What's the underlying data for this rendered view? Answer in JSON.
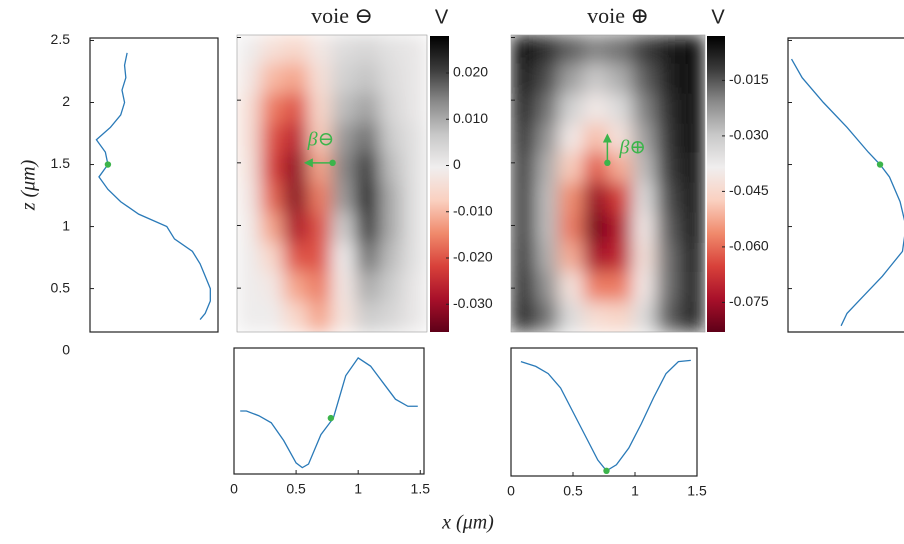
{
  "shared": {
    "xlabel": "x (μm)",
    "ylabel": "z (μm)"
  },
  "chart_data": [
    {
      "type": "vprofile",
      "ylim": [
        0.15,
        2.52
      ],
      "vlim": [
        0,
        1
      ],
      "yticks": [
        0,
        0.5,
        1,
        1.5,
        2,
        2.5
      ],
      "z": [
        2.4,
        2.3,
        2.2,
        2.1,
        2.0,
        1.9,
        1.8,
        1.7,
        1.6,
        1.5,
        1.4,
        1.3,
        1.2,
        1.1,
        1.0,
        0.9,
        0.8,
        0.7,
        0.6,
        0.5,
        0.4,
        0.3,
        0.25
      ],
      "values": [
        0.29,
        0.27,
        0.28,
        0.25,
        0.27,
        0.24,
        0.16,
        0.05,
        0.12,
        0.14,
        0.07,
        0.14,
        0.24,
        0.38,
        0.6,
        0.66,
        0.8,
        0.86,
        0.9,
        0.94,
        0.94,
        0.9,
        0.86
      ],
      "color": "#2a7ab8",
      "marker": {
        "z": 1.5,
        "value": 0.14,
        "color": "#3cb44b"
      }
    },
    {
      "type": "heatmap",
      "title": "voie ⊖",
      "annotation": "β⊖",
      "xlim": [
        0,
        1.55
      ],
      "ylim": [
        0.15,
        2.52
      ],
      "x": [
        0.1,
        0.29,
        0.48,
        0.68,
        0.87,
        1.07,
        1.26,
        1.45
      ],
      "z": [
        2.4,
        2.17,
        1.93,
        1.69,
        1.46,
        1.22,
        0.98,
        0.74,
        0.51,
        0.27
      ],
      "values": [
        [
          0,
          -0.004,
          -0.006,
          -0.002,
          0.003,
          0.004,
          0.002,
          0.001
        ],
        [
          -0.002,
          -0.01,
          -0.012,
          -0.004,
          0.005,
          0.007,
          0.003,
          0.001
        ],
        [
          -0.004,
          -0.016,
          -0.02,
          -0.006,
          0.008,
          0.011,
          0.004,
          0.001
        ],
        [
          -0.004,
          -0.02,
          -0.026,
          -0.008,
          0.012,
          0.016,
          0.006,
          0.002
        ],
        [
          -0.003,
          -0.022,
          -0.031,
          -0.012,
          0.014,
          0.021,
          0.008,
          0.002
        ],
        [
          -0.002,
          -0.018,
          -0.032,
          -0.016,
          0.012,
          0.025,
          0.01,
          0.002
        ],
        [
          -0.001,
          -0.012,
          -0.028,
          -0.02,
          0.006,
          0.022,
          0.01,
          0.002
        ],
        [
          0,
          -0.006,
          -0.02,
          -0.02,
          0.0,
          0.016,
          0.008,
          0.002
        ],
        [
          0,
          -0.002,
          -0.012,
          -0.016,
          -0.002,
          0.01,
          0.006,
          0.001
        ],
        [
          0,
          0,
          -0.006,
          -0.012,
          -0.003,
          0.006,
          0.004,
          0.001
        ]
      ],
      "clim": [
        -0.036,
        0.028
      ],
      "colormap": [
        "#5e0018",
        "#a8102a",
        "#d8413a",
        "#f08a6c",
        "#fad0c0",
        "#f0eeee",
        "#c8c8c8",
        "#8a8a8a",
        "#3a3a3a",
        "#000000"
      ],
      "colorbar_label": "V",
      "colorbar_ticks": [
        {
          "value": 0.02,
          "label": "0.020"
        },
        {
          "value": 0.01,
          "label": "0.010"
        },
        0,
        {
          "value": -0.01,
          "label": "-0.010"
        },
        {
          "value": -0.02,
          "label": "-0.020"
        },
        {
          "value": -0.03,
          "label": "-0.030"
        }
      ],
      "marker": {
        "x": 0.78,
        "z": 1.5,
        "dx": -0.22,
        "dz": 0,
        "color": "#3cb44b"
      }
    },
    {
      "type": "line",
      "xlim": [
        0,
        1.53
      ],
      "vlim": [
        0,
        1
      ],
      "xticks": [
        0,
        0.5,
        1,
        1.5
      ],
      "x": [
        0.05,
        0.1,
        0.2,
        0.3,
        0.4,
        0.5,
        0.55,
        0.6,
        0.7,
        0.8,
        0.9,
        1.0,
        1.1,
        1.2,
        1.3,
        1.4,
        1.48
      ],
      "values": [
        0.5,
        0.5,
        0.46,
        0.4,
        0.25,
        0.06,
        0.02,
        0.05,
        0.3,
        0.44,
        0.8,
        0.95,
        0.88,
        0.74,
        0.6,
        0.54,
        0.54
      ],
      "color": "#2a7ab8",
      "marker": {
        "x": 0.78,
        "value": 0.44,
        "color": "#3cb44b"
      }
    },
    {
      "type": "heatmap",
      "title": "voie ⊕",
      "annotation": "β⊕",
      "xlim": [
        0,
        1.55
      ],
      "ylim": [
        0.15,
        2.52
      ],
      "x": [
        0.1,
        0.29,
        0.48,
        0.68,
        0.87,
        1.07,
        1.26,
        1.45
      ],
      "z": [
        2.4,
        2.17,
        1.93,
        1.69,
        1.46,
        1.22,
        0.98,
        0.74,
        0.51,
        0.27
      ],
      "values": [
        [
          -0.005,
          -0.01,
          -0.016,
          -0.02,
          -0.018,
          -0.012,
          -0.007,
          -0.004
        ],
        [
          -0.006,
          -0.014,
          -0.024,
          -0.03,
          -0.026,
          -0.016,
          -0.008,
          -0.004
        ],
        [
          -0.008,
          -0.018,
          -0.032,
          -0.04,
          -0.034,
          -0.02,
          -0.01,
          -0.005
        ],
        [
          -0.01,
          -0.022,
          -0.04,
          -0.05,
          -0.042,
          -0.024,
          -0.011,
          -0.005
        ],
        [
          -0.012,
          -0.026,
          -0.048,
          -0.062,
          -0.052,
          -0.028,
          -0.012,
          -0.006
        ],
        [
          -0.012,
          -0.028,
          -0.056,
          -0.076,
          -0.066,
          -0.034,
          -0.014,
          -0.006
        ],
        [
          -0.012,
          -0.028,
          -0.058,
          -0.08,
          -0.072,
          -0.04,
          -0.016,
          -0.006
        ],
        [
          -0.011,
          -0.026,
          -0.052,
          -0.074,
          -0.07,
          -0.042,
          -0.018,
          -0.007
        ],
        [
          -0.01,
          -0.022,
          -0.042,
          -0.058,
          -0.058,
          -0.04,
          -0.018,
          -0.008
        ],
        [
          -0.009,
          -0.018,
          -0.034,
          -0.044,
          -0.046,
          -0.034,
          -0.016,
          -0.008
        ]
      ],
      "clim": [
        -0.083,
        -0.003
      ],
      "colormap": [
        "#5e0018",
        "#a8102a",
        "#d8413a",
        "#f08a6c",
        "#fad0c0",
        "#f0eeee",
        "#c8c8c8",
        "#8a8a8a",
        "#3a3a3a",
        "#000000"
      ],
      "colorbar_label": "V",
      "colorbar_ticks": [
        {
          "value": -0.015,
          "label": "-0.015"
        },
        {
          "value": -0.03,
          "label": "-0.030"
        },
        {
          "value": -0.045,
          "label": "-0.045"
        },
        {
          "value": -0.06,
          "label": "-0.060"
        },
        {
          "value": -0.075,
          "label": "-0.075"
        }
      ],
      "marker": {
        "x": 0.77,
        "z": 1.5,
        "dx": 0,
        "dz": 0.22,
        "color": "#3cb44b"
      }
    },
    {
      "type": "line",
      "xlim": [
        0,
        1.5
      ],
      "vlim": [
        0,
        1
      ],
      "xticks": [
        0,
        0.5,
        1,
        1.5
      ],
      "x": [
        0.08,
        0.2,
        0.3,
        0.4,
        0.5,
        0.6,
        0.7,
        0.77,
        0.85,
        0.95,
        1.05,
        1.15,
        1.25,
        1.35,
        1.45
      ],
      "values": [
        0.92,
        0.88,
        0.82,
        0.7,
        0.5,
        0.3,
        0.1,
        0.01,
        0.06,
        0.2,
        0.4,
        0.62,
        0.82,
        0.92,
        0.93
      ],
      "color": "#2a7ab8",
      "marker": {
        "x": 0.77,
        "value": 0.01,
        "color": "#3cb44b"
      }
    },
    {
      "type": "vprofile",
      "ylim": [
        0.15,
        2.52
      ],
      "vlim": [
        0,
        1
      ],
      "z": [
        2.35,
        2.2,
        2.0,
        1.8,
        1.6,
        1.5,
        1.4,
        1.2,
        1.0,
        0.8,
        0.6,
        0.5,
        0.4,
        0.3,
        0.2
      ],
      "values": [
        0.03,
        0.12,
        0.3,
        0.5,
        0.68,
        0.78,
        0.86,
        0.95,
        1.0,
        0.97,
        0.8,
        0.7,
        0.6,
        0.5,
        0.45
      ],
      "color": "#2a7ab8",
      "marker": {
        "z": 1.5,
        "value": 0.78,
        "color": "#3cb44b"
      }
    }
  ]
}
